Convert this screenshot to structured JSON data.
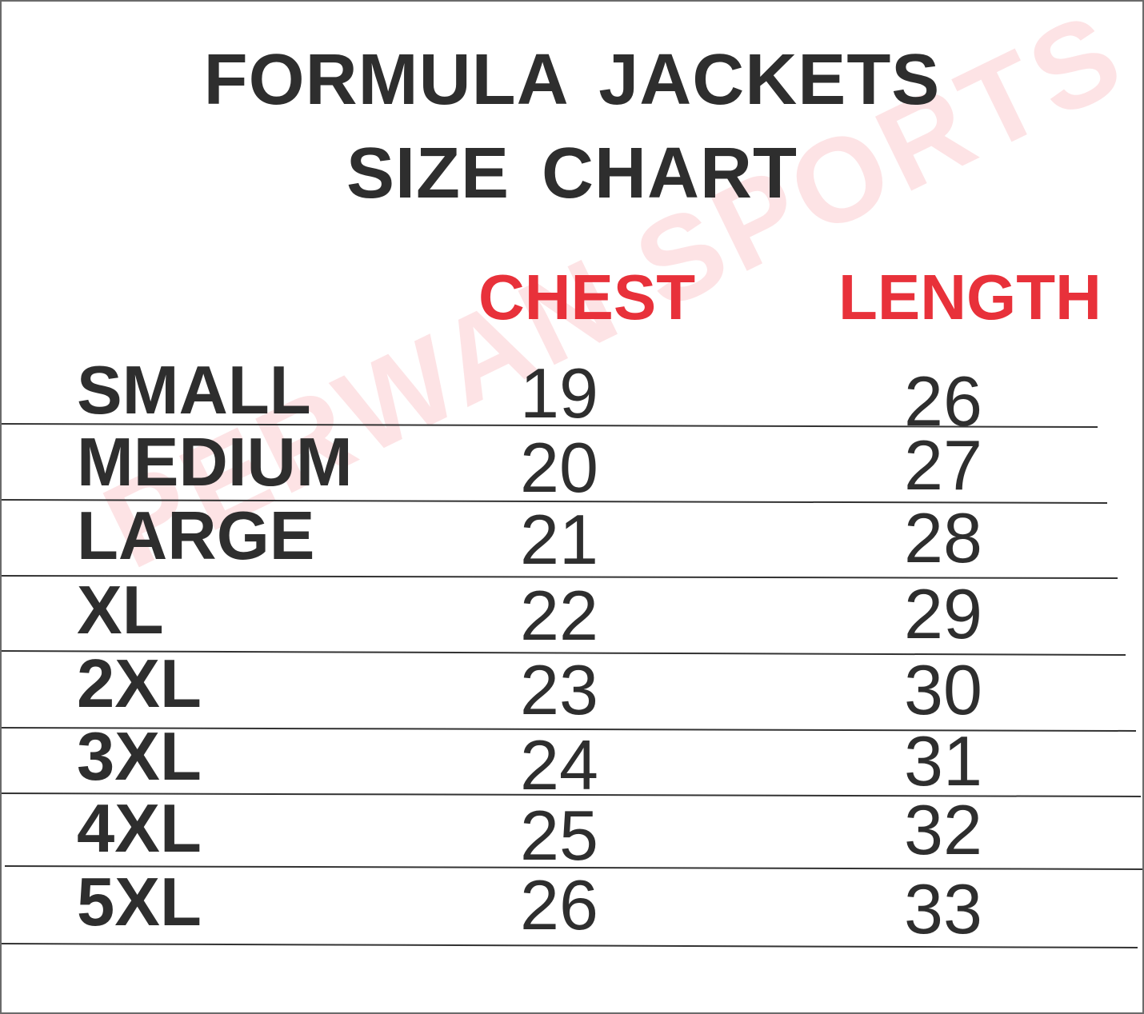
{
  "title_line1": "FORMULA JACKETS",
  "title_line2": "SIZE CHART",
  "columns": {
    "chest": "CHEST",
    "length": "LENGTH"
  },
  "watermark": "PERWAN SPORTS",
  "colors": {
    "header": "#e8313a",
    "text": "#2e2e2e",
    "watermark": "#f6c9cc"
  },
  "rows": [
    {
      "size": "SMALL",
      "chest": "19",
      "length": "26"
    },
    {
      "size": "MEDIUM",
      "chest": "20",
      "length": "27"
    },
    {
      "size": "LARGE",
      "chest": "21",
      "length": "28"
    },
    {
      "size": "XL",
      "chest": "22",
      "length": "29"
    },
    {
      "size": "2XL",
      "chest": "23",
      "length": "30"
    },
    {
      "size": "3XL",
      "chest": "24",
      "length": "31"
    },
    {
      "size": "4XL",
      "chest": "25",
      "length": "32"
    },
    {
      "size": "5XL",
      "chest": "26",
      "length": "33"
    }
  ]
}
